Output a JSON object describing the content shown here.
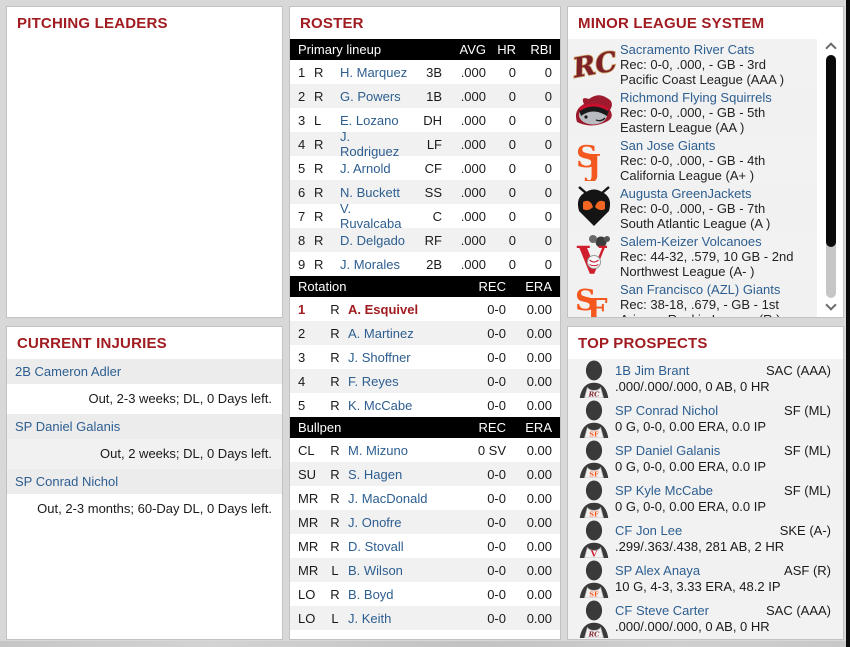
{
  "colors": {
    "title_red": "#a01c20",
    "link_blue": "#2d5e90",
    "table_header_bg": "#000000",
    "row_alt": "#f1f1f1",
    "injury_row_bg": "#ececec",
    "page_bg": "#d8d8d8",
    "giants_orange": "#f4581f",
    "rivercats_maroon": "#7d2128",
    "volcanoes_red": "#d01e2f"
  },
  "pitching_leaders": {
    "title": "PITCHING LEADERS"
  },
  "current_injuries": {
    "title": "CURRENT INJURIES",
    "items": [
      {
        "player": "2B Cameron Adler",
        "detail": "Out, 2-3 weeks; DL, 0 Days left."
      },
      {
        "player": "SP Daniel Galanis",
        "detail": "Out, 2 weeks; DL, 0 Days left."
      },
      {
        "player": "SP Conrad Nichol",
        "detail": "Out, 2-3 months; 60-Day DL, 0 Days left."
      }
    ]
  },
  "roster": {
    "title": "ROSTER",
    "lineup": {
      "header": {
        "label": "Primary lineup",
        "cols": [
          "AVG",
          "HR",
          "RBI"
        ]
      },
      "rows": [
        {
          "num": "1",
          "hand": "R",
          "name": "H. Marquez",
          "pos": "3B",
          "avg": ".000",
          "hr": "0",
          "rbi": "0"
        },
        {
          "num": "2",
          "hand": "R",
          "name": "G. Powers",
          "pos": "1B",
          "avg": ".000",
          "hr": "0",
          "rbi": "0"
        },
        {
          "num": "3",
          "hand": "L",
          "name": "E. Lozano",
          "pos": "DH",
          "avg": ".000",
          "hr": "0",
          "rbi": "0"
        },
        {
          "num": "4",
          "hand": "R",
          "name": "J. Rodriguez",
          "pos": "LF",
          "avg": ".000",
          "hr": "0",
          "rbi": "0"
        },
        {
          "num": "5",
          "hand": "R",
          "name": "J. Arnold",
          "pos": "CF",
          "avg": ".000",
          "hr": "0",
          "rbi": "0"
        },
        {
          "num": "6",
          "hand": "R",
          "name": "N. Buckett",
          "pos": "SS",
          "avg": ".000",
          "hr": "0",
          "rbi": "0"
        },
        {
          "num": "7",
          "hand": "R",
          "name": "V. Ruvalcaba",
          "pos": "C",
          "avg": ".000",
          "hr": "0",
          "rbi": "0"
        },
        {
          "num": "8",
          "hand": "R",
          "name": "D. Delgado",
          "pos": "RF",
          "avg": ".000",
          "hr": "0",
          "rbi": "0"
        },
        {
          "num": "9",
          "hand": "R",
          "name": "J. Morales",
          "pos": "2B",
          "avg": ".000",
          "hr": "0",
          "rbi": "0"
        }
      ]
    },
    "rotation": {
      "header": {
        "label": "Rotation",
        "cols": [
          "REC",
          "ERA"
        ]
      },
      "rows": [
        {
          "role": "1",
          "hand": "R",
          "name": "A. Esquivel",
          "rec": "0-0",
          "era": "0.00",
          "highlight": true
        },
        {
          "role": "2",
          "hand": "R",
          "name": "A. Martinez",
          "rec": "0-0",
          "era": "0.00"
        },
        {
          "role": "3",
          "hand": "R",
          "name": "J. Shoffner",
          "rec": "0-0",
          "era": "0.00"
        },
        {
          "role": "4",
          "hand": "R",
          "name": "F. Reyes",
          "rec": "0-0",
          "era": "0.00"
        },
        {
          "role": "5",
          "hand": "R",
          "name": "K. McCabe",
          "rec": "0-0",
          "era": "0.00"
        }
      ]
    },
    "bullpen": {
      "header": {
        "label": "Bullpen",
        "cols": [
          "REC",
          "ERA"
        ]
      },
      "rows": [
        {
          "role": "CL",
          "hand": "R",
          "name": "M. Mizuno",
          "rec": "0 SV",
          "era": "0.00"
        },
        {
          "role": "SU",
          "hand": "R",
          "name": "S. Hagen",
          "rec": "0-0",
          "era": "0.00"
        },
        {
          "role": "MR",
          "hand": "R",
          "name": "J. MacDonald",
          "rec": "0-0",
          "era": "0.00"
        },
        {
          "role": "MR",
          "hand": "R",
          "name": "J. Onofre",
          "rec": "0-0",
          "era": "0.00"
        },
        {
          "role": "MR",
          "hand": "R",
          "name": "D. Stovall",
          "rec": "0-0",
          "era": "0.00"
        },
        {
          "role": "MR",
          "hand": "L",
          "name": "B. Wilson",
          "rec": "0-0",
          "era": "0.00"
        },
        {
          "role": "LO",
          "hand": "R",
          "name": "B. Boyd",
          "rec": "0-0",
          "era": "0.00"
        },
        {
          "role": "LO",
          "hand": "L",
          "name": "J. Keith",
          "rec": "0-0",
          "era": "0.00"
        }
      ]
    }
  },
  "minor_league_system": {
    "title": "MINOR LEAGUE SYSTEM",
    "teams": [
      {
        "name": "Sacramento River Cats",
        "record": "Rec: 0-0, .000, - GB - 3rd",
        "league": "Pacific Coast League (AAA )",
        "logo": "rc"
      },
      {
        "name": "Richmond Flying Squirrels",
        "record": "Rec: 0-0, .000, - GB - 5th",
        "league": "Eastern League (AA )",
        "logo": "squirrel"
      },
      {
        "name": "San Jose Giants",
        "record": "Rec: 0-0, .000, - GB - 4th",
        "league": "California League (A+ )",
        "logo": "sj"
      },
      {
        "name": "Augusta GreenJackets",
        "record": "Rec: 0-0, .000, - GB - 7th",
        "league": "South Atlantic League (A )",
        "logo": "gj"
      },
      {
        "name": "Salem-Keizer Volcanoes",
        "record": "Rec: 44-32, .579, 10 GB - 2nd",
        "league": "Northwest League (A- )",
        "logo": "ske"
      },
      {
        "name": "San Francisco (AZL) Giants",
        "record": "Rec: 38-18, .679, - GB - 1st",
        "league": "Arizona Rookie League (R )",
        "logo": "sf"
      }
    ]
  },
  "top_prospects": {
    "title": "TOP PROSPECTS",
    "players": [
      {
        "name": "1B Jim Brant",
        "team": "SAC (AAA)",
        "stats": ".000/.000/.000, 0 AB, 0 HR",
        "logo": "rc"
      },
      {
        "name": "SP Conrad Nichol",
        "team": "SF (ML)",
        "stats": "0 G, 0-0, 0.00 ERA, 0.0 IP",
        "logo": "sf"
      },
      {
        "name": "SP Daniel Galanis",
        "team": "SF (ML)",
        "stats": "0 G, 0-0, 0.00 ERA, 0.0 IP",
        "logo": "sf"
      },
      {
        "name": "SP Kyle McCabe",
        "team": "SF (ML)",
        "stats": "0 G, 0-0, 0.00 ERA, 0.0 IP",
        "logo": "sf"
      },
      {
        "name": "CF Jon Lee",
        "team": "SKE (A-)",
        "stats": ".299/.363/.438, 281 AB, 2 HR",
        "logo": "ske"
      },
      {
        "name": "SP Alex Anaya",
        "team": "ASF (R)",
        "stats": "10 G, 4-3, 3.33 ERA, 48.2 IP",
        "logo": "sf"
      },
      {
        "name": "CF Steve Carter",
        "team": "SAC (AAA)",
        "stats": ".000/.000/.000, 0 AB, 0 HR",
        "logo": "rc"
      }
    ]
  }
}
